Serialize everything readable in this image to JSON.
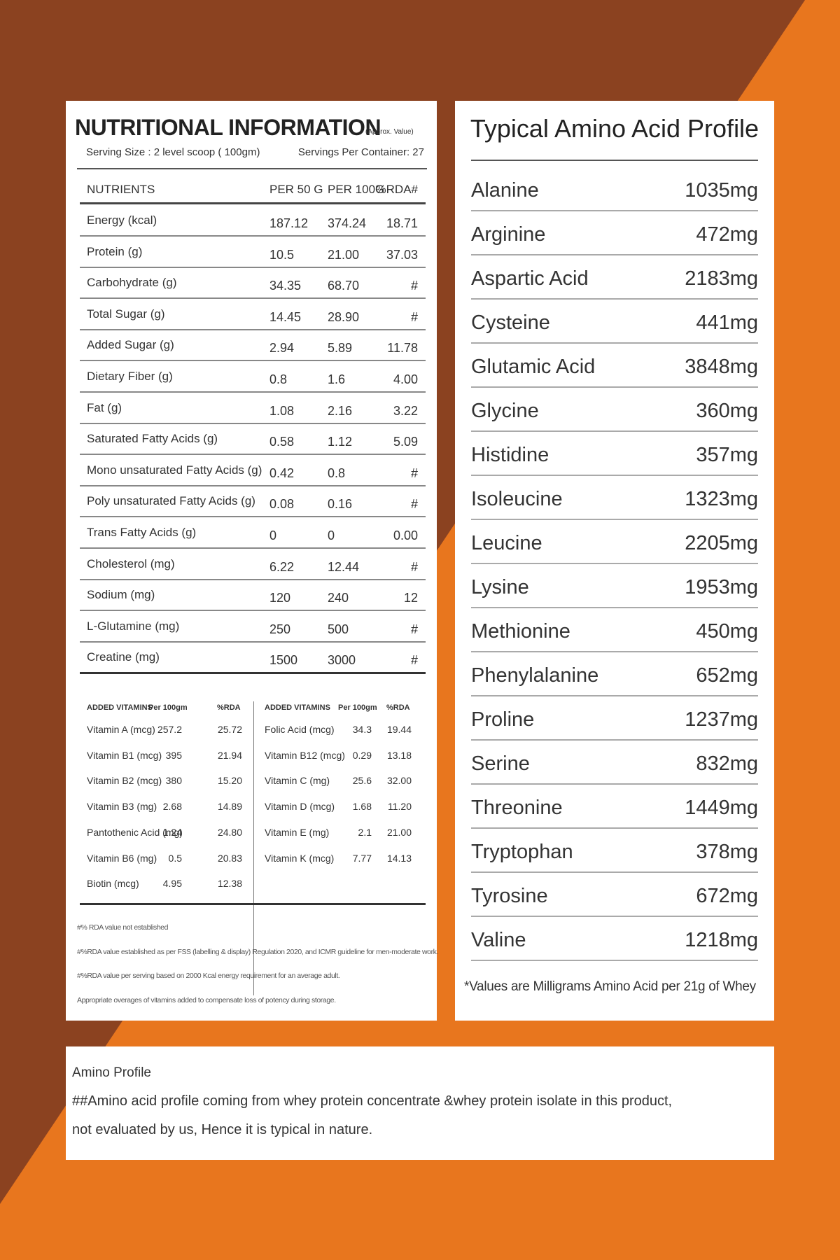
{
  "nutrition": {
    "title": "NUTRITIONAL INFORMATION",
    "note": "(Approx. Value)",
    "serving_size": "Serving Size : 2 level scoop ( 100gm)",
    "servings_per_container": "Servings Per Container: 27",
    "table": {
      "headers": [
        "NUTRIENTS",
        "PER 50 G",
        "PER 100G",
        "%RDA#"
      ],
      "rows": [
        [
          "Energy (kcal)",
          "187.12",
          "374.24",
          "18.71"
        ],
        [
          "Protein (g)",
          "10.5",
          "21.00",
          "37.03"
        ],
        [
          "Carbohydrate (g)",
          "34.35",
          "68.70",
          "#"
        ],
        [
          "Total Sugar (g)",
          "14.45",
          "28.90",
          "#"
        ],
        [
          "Added Sugar (g)",
          "2.94",
          "5.89",
          "11.78"
        ],
        [
          "Dietary Fiber (g)",
          "0.8",
          "1.6",
          "4.00"
        ],
        [
          "Fat (g)",
          "1.08",
          "2.16",
          "3.22"
        ],
        [
          "Saturated Fatty Acids (g)",
          "0.58",
          "1.12",
          "5.09"
        ],
        [
          "Mono unsaturated Fatty Acids (g)",
          "0.42",
          "0.8",
          "#"
        ],
        [
          "Poly unsaturated Fatty Acids (g)",
          "0.08",
          "0.16",
          "#"
        ],
        [
          "Trans Fatty Acids (g)",
          "0",
          "0",
          "0.00"
        ],
        [
          "Cholesterol (mg)",
          "6.22",
          "12.44",
          "#"
        ],
        [
          "Sodium (mg)",
          "120",
          "240",
          "12"
        ],
        [
          "L-Glutamine (mg)",
          "250",
          "500",
          "#"
        ],
        [
          "Creatine (mg)",
          "1500",
          "3000",
          "#"
        ]
      ]
    },
    "vitamins_left": {
      "headers": [
        "ADDED VITAMINS",
        "Per 100gm",
        "%RDA"
      ],
      "rows": [
        [
          "Vitamin A (mcg)",
          "257.2",
          "25.72"
        ],
        [
          "Vitamin B1 (mcg)",
          "395",
          "21.94"
        ],
        [
          "Vitamin B2 (mcg)",
          "380",
          "15.20"
        ],
        [
          "Vitamin B3 (mg)",
          "2.68",
          "14.89"
        ],
        [
          "Pantothenic Acid (mg)",
          "1.24",
          "24.80"
        ],
        [
          "Vitamin B6 (mg)",
          "0.5",
          "20.83"
        ],
        [
          "Biotin (mcg)",
          "4.95",
          "12.38"
        ]
      ]
    },
    "vitamins_right": {
      "headers": [
        "ADDED VITAMINS",
        "Per 100gm",
        "%RDA"
      ],
      "rows": [
        [
          "Folic Acid (mcg)",
          "34.3",
          "19.44"
        ],
        [
          "Vitamin B12 (mcg)",
          "0.29",
          "13.18"
        ],
        [
          "Vitamin C (mg)",
          "25.6",
          "32.00"
        ],
        [
          "Vitamin D (mcg)",
          "1.68",
          "11.20"
        ],
        [
          "Vitamin E (mg)",
          "2.1",
          "21.00"
        ],
        [
          "Vitamin K (mcg)",
          "7.77",
          "14.13"
        ]
      ]
    },
    "footnotes": [
      "#% RDA value not established",
      "#%RDA value established as per FSS (labelling & display) Regulation 2020, and ICMR guideline for men-moderate work.",
      "#%RDA value per serving based on 2000 Kcal energy requirement for an average adult.",
      "Appropriate overages of vitamins added to compensate loss of potency during  storage."
    ]
  },
  "amino": {
    "title": "Typical Amino Acid Profile",
    "rows": [
      [
        "Alanine",
        "1035mg"
      ],
      [
        "Arginine",
        "472mg"
      ],
      [
        "Aspartic Acid",
        "2183mg"
      ],
      [
        "Cysteine",
        "441mg"
      ],
      [
        "Glutamic Acid",
        "3848mg"
      ],
      [
        "Glycine",
        "360mg"
      ],
      [
        "Histidine",
        "357mg"
      ],
      [
        "Isoleucine",
        "1323mg"
      ],
      [
        "Leucine",
        "2205mg"
      ],
      [
        "Lysine",
        "1953mg"
      ],
      [
        "Methionine",
        "450mg"
      ],
      [
        "Phenylalanine",
        "652mg"
      ],
      [
        "Proline",
        "1237mg"
      ],
      [
        "Serine",
        "832mg"
      ],
      [
        "Threonine",
        "1449mg"
      ],
      [
        "Tryptophan",
        "378mg"
      ],
      [
        "Tyrosine",
        "672mg"
      ],
      [
        "Valine",
        "1218mg"
      ]
    ],
    "footnote": "*Values are Milligrams Amino Acid per 21g of Whey"
  },
  "notice": {
    "title": "Amino Profile",
    "lines": [
      "##Amino acid profile coming from whey protein concentrate &whey protein isolate in this product,",
      "not evaluated by us, Hence it is typical in nature."
    ]
  }
}
